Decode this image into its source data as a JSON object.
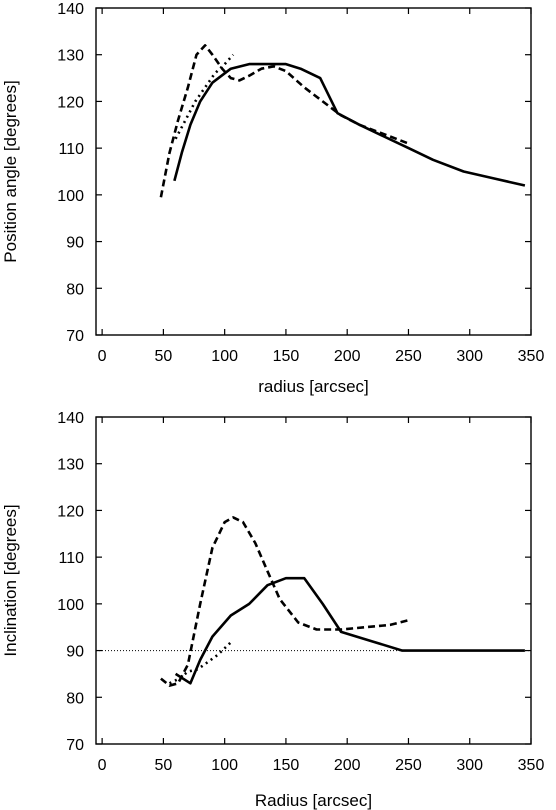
{
  "chart_data": [
    {
      "type": "line",
      "title": "",
      "xlabel": "radius [arcsec]",
      "ylabel": "Position angle [degrees]",
      "xlim": [
        -5,
        350
      ],
      "ylim": [
        70,
        140
      ],
      "xticks": [
        0,
        50,
        100,
        150,
        200,
        250,
        300,
        350
      ],
      "yticks": [
        70,
        80,
        90,
        100,
        110,
        120,
        130,
        140
      ],
      "grid": false,
      "legend": "none",
      "series": [
        {
          "style": "solid",
          "x": [
            59,
            65,
            72,
            80,
            90,
            105,
            120,
            135,
            150,
            162,
            178,
            192,
            210,
            230,
            250,
            270,
            295,
            320,
            345
          ],
          "y": [
            103,
            109,
            115,
            120,
            124,
            127,
            128,
            128,
            128,
            127,
            125,
            117.5,
            115,
            112.5,
            110,
            107.5,
            105,
            103.5,
            102
          ]
        },
        {
          "style": "dashed",
          "x": [
            48,
            55,
            62,
            70,
            77,
            84,
            90,
            98,
            105,
            112,
            120,
            130,
            140,
            150,
            165,
            180,
            195,
            210,
            225,
            240,
            250
          ],
          "y": [
            99.5,
            109,
            116,
            123,
            130,
            132,
            130,
            127,
            125,
            124.5,
            125.5,
            127,
            127.5,
            126.5,
            123,
            120,
            117,
            115,
            113.5,
            112,
            111
          ]
        },
        {
          "style": "dotted",
          "x": [
            60,
            68,
            76,
            84,
            92,
            100,
            107
          ],
          "y": [
            112,
            116,
            120,
            123,
            126,
            128,
            130
          ]
        }
      ]
    },
    {
      "type": "line",
      "title": "",
      "xlabel": "Radius [arcsec]",
      "ylabel": "Inclination [degrees]",
      "xlim": [
        -5,
        350
      ],
      "ylim": [
        70,
        140
      ],
      "xticks": [
        0,
        50,
        100,
        150,
        200,
        250,
        300,
        350
      ],
      "yticks": [
        70,
        80,
        90,
        100,
        110,
        120,
        130,
        140
      ],
      "grid": false,
      "legend": "none",
      "reference_line_y": 90,
      "series": [
        {
          "style": "solid",
          "x": [
            60,
            72,
            80,
            90,
            105,
            120,
            135,
            150,
            165,
            180,
            195,
            220,
            245,
            270,
            300,
            345
          ],
          "y": [
            85,
            83,
            88,
            93,
            97.5,
            100,
            104,
            105.5,
            105.5,
            100,
            94,
            92,
            90,
            90,
            90,
            90
          ]
        },
        {
          "style": "dashed",
          "x": [
            48,
            55,
            62,
            70,
            80,
            90,
            100,
            107,
            115,
            125,
            135,
            145,
            160,
            175,
            195,
            215,
            235,
            250
          ],
          "y": [
            84,
            82.5,
            83,
            87,
            100,
            112,
            117.5,
            118.5,
            117.5,
            113,
            107,
            101,
            96,
            94.5,
            94.5,
            95,
            95.5,
            96.5
          ]
        },
        {
          "style": "dotted",
          "x": [
            55,
            63,
            70,
            78,
            86,
            94,
            100,
            106
          ],
          "y": [
            83,
            84,
            85.5,
            86,
            87.5,
            89,
            90.5,
            92
          ]
        }
      ]
    }
  ]
}
